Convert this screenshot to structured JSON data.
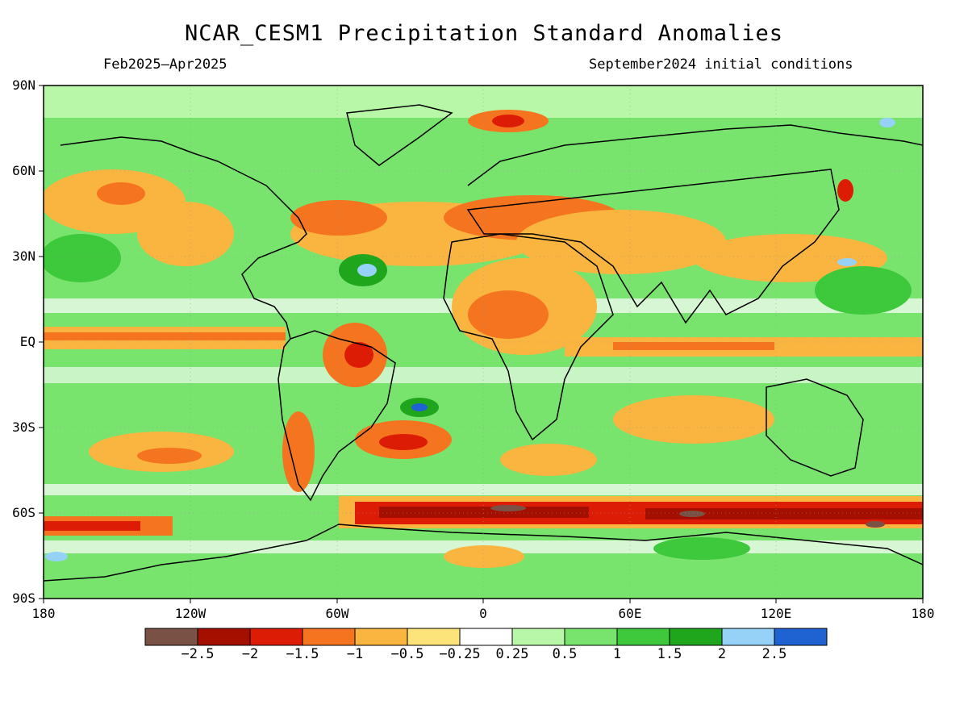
{
  "title": "NCAR_CESM1 Precipitation Standard Anomalies",
  "period": "Feb2025–Apr2025",
  "init_conditions": "September2024 initial conditions",
  "lat_labels": [
    "90N",
    "60N",
    "30N",
    "EQ",
    "30S",
    "60S",
    "90S"
  ],
  "lon_labels": [
    "180",
    "120W",
    "60W",
    "0",
    "60E",
    "120E",
    "180"
  ],
  "legend": {
    "labels": [
      "−2.5",
      "−2",
      "−1.5",
      "−1",
      "−0.5",
      "−0.25",
      "0.25",
      "0.5",
      "1",
      "1.5",
      "2",
      "2.5"
    ],
    "colors": [
      "#7a5245",
      "#a50f00",
      "#dd1c05",
      "#f57420",
      "#f9b53f",
      "#fde47a",
      "#ffffff",
      "#b8f6a8",
      "#78e46e",
      "#3ec83c",
      "#1fa61d",
      "#96d2f8",
      "#1f62d2"
    ]
  }
}
